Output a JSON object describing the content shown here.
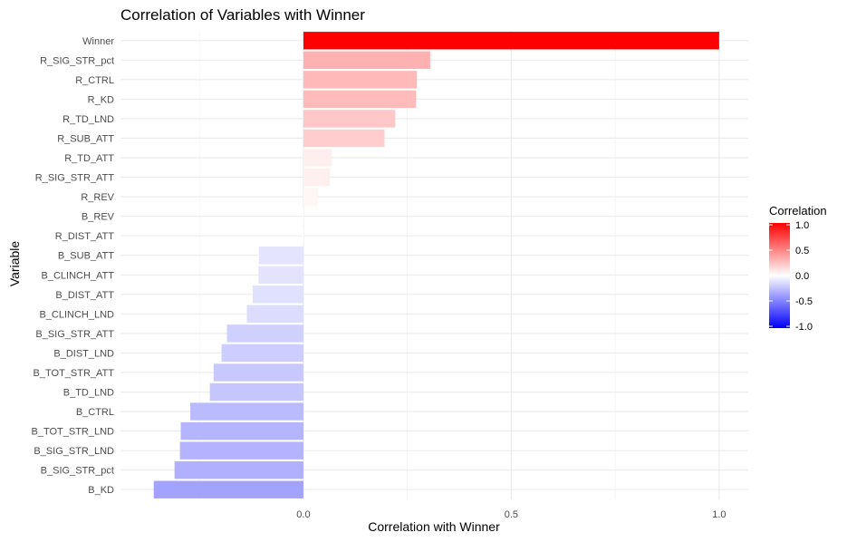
{
  "chart_data": {
    "type": "bar",
    "orientation": "horizontal",
    "title": "Correlation of Variables with Winner",
    "xlabel": "Correlation with Winner",
    "ylabel": "Variable",
    "xlim": [
      -0.44,
      1.07
    ],
    "x_ticks": [
      0.0,
      0.5,
      1.0
    ],
    "x_tick_labels": [
      "0.0",
      "0.5",
      "1.0"
    ],
    "grid": true,
    "categories": [
      "Winner",
      "R_SIG_STR_pct",
      "R_CTRL",
      "R_KD",
      "R_TD_LND",
      "R_SUB_ATT",
      "R_TD_ATT",
      "R_SIG_STR_ATT",
      "R_REV",
      "B_REV",
      "R_DIST_ATT",
      "B_SUB_ATT",
      "B_CLINCH_ATT",
      "B_DIST_ATT",
      "B_CLINCH_LND",
      "B_SIG_STR_ATT",
      "B_DIST_LND",
      "B_TOT_STR_ATT",
      "B_TD_LND",
      "B_CTRL",
      "B_TOT_STR_LND",
      "B_SIG_STR_LND",
      "B_SIG_STR_pct",
      "B_KD"
    ],
    "values": [
      1.0,
      0.305,
      0.273,
      0.271,
      0.221,
      0.195,
      0.068,
      0.064,
      0.035,
      -0.002,
      -0.004,
      -0.107,
      -0.108,
      -0.122,
      -0.136,
      -0.184,
      -0.197,
      -0.216,
      -0.225,
      -0.272,
      -0.295,
      -0.297,
      -0.31,
      -0.36
    ],
    "legend": {
      "title": "Correlation",
      "placement": "right",
      "ticks": [
        1.0,
        0.5,
        0.0,
        -0.5,
        -1.0
      ],
      "tick_labels": [
        "1.0",
        "0.5",
        "0.0",
        "-0.5",
        "-1.0"
      ],
      "colors": {
        "low": "#0000FF",
        "mid": "#FFFFFF",
        "high": "#FF0000"
      },
      "limits": [
        -1,
        1
      ]
    }
  }
}
